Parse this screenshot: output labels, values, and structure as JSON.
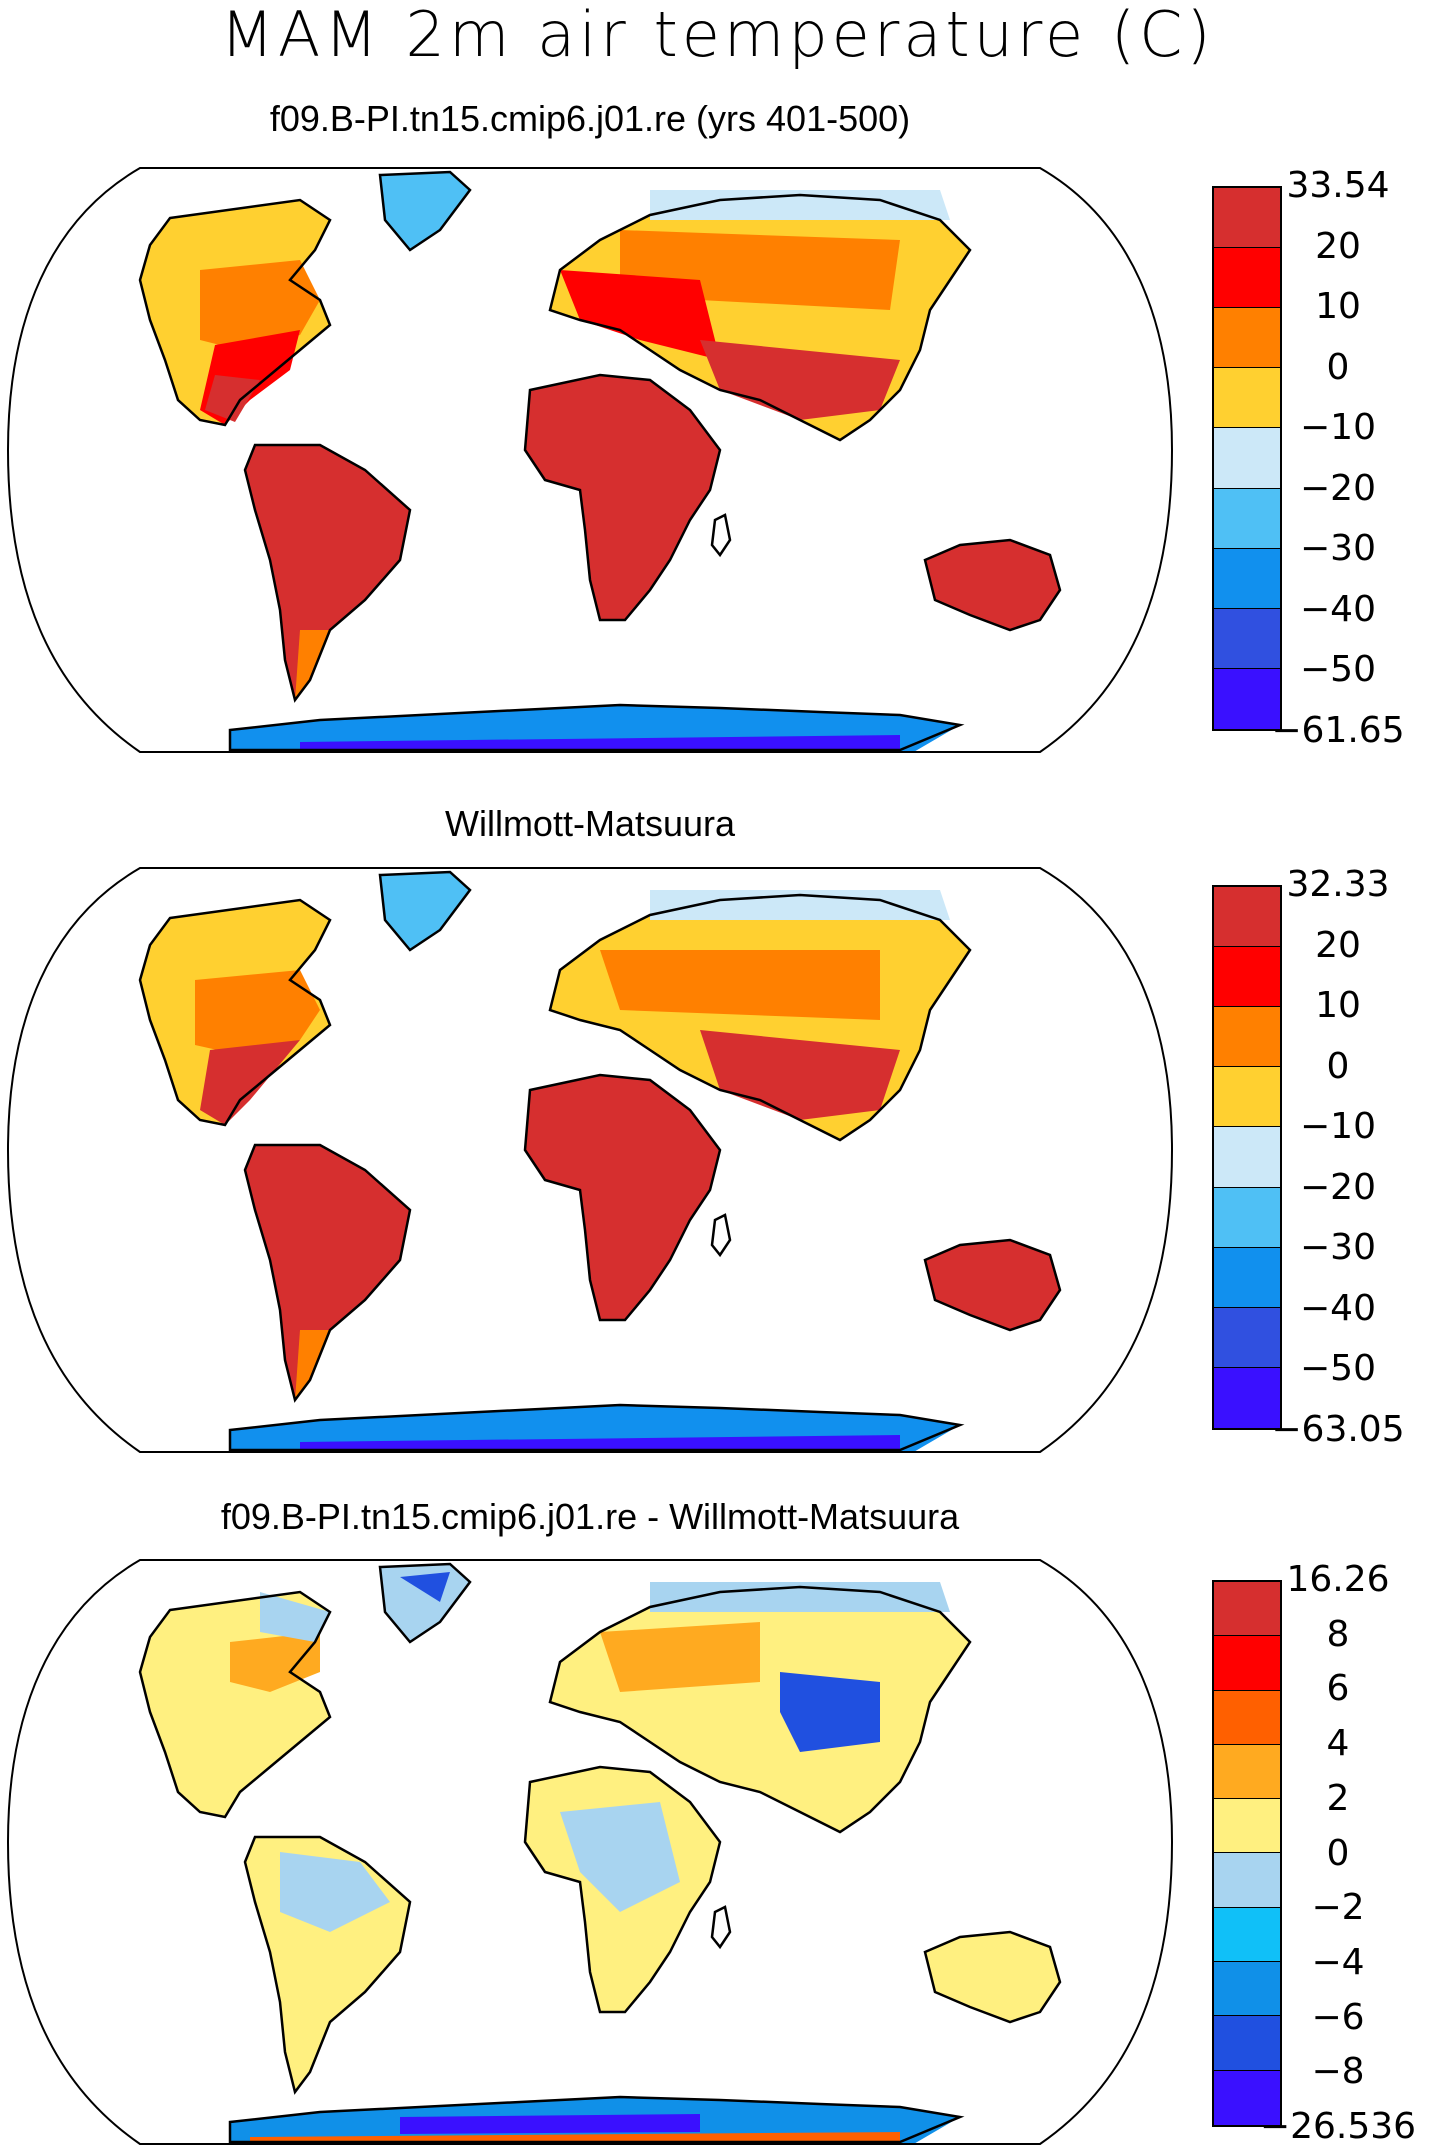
{
  "title": "MAM 2m air temperature (C)",
  "panels": [
    {
      "id": "model",
      "title": "f09.B-PI.tn15.cmip6.j01.re (yrs 401-500)",
      "colorbar": {
        "labels": [
          "33.54",
          "20",
          "10",
          "0",
          "−10",
          "−20",
          "−30",
          "−40",
          "−50",
          "−61.65"
        ],
        "colors": [
          "#d62f2f",
          "#ff0000",
          "#ff8000",
          "#ffd030",
          "#cce8f8",
          "#4fc0f5",
          "#1190ee",
          "#3050e0",
          "#3a10ff"
        ]
      }
    },
    {
      "id": "obs",
      "title": "Willmott-Matsuura",
      "colorbar": {
        "labels": [
          "32.33",
          "20",
          "10",
          "0",
          "−10",
          "−20",
          "−30",
          "−40",
          "−50",
          "−63.05"
        ],
        "colors": [
          "#d62f2f",
          "#ff0000",
          "#ff8000",
          "#ffd030",
          "#cce8f8",
          "#4fc0f5",
          "#1190ee",
          "#3050e0",
          "#3a10ff"
        ]
      }
    },
    {
      "id": "diff",
      "title": "f09.B-PI.tn15.cmip6.j01.re - Willmott-Matsuura",
      "colorbar": {
        "labels": [
          "16.26",
          "8",
          "6",
          "4",
          "2",
          "0",
          "−2",
          "−4",
          "−6",
          "−8",
          "−26.536"
        ],
        "colors": [
          "#d62f2f",
          "#ff0000",
          "#ff6000",
          "#ffaa20",
          "#fff080",
          "#a8d4f0",
          "#10c0f8",
          "#1090e8",
          "#2050e0",
          "#3a10ff"
        ]
      }
    }
  ]
}
